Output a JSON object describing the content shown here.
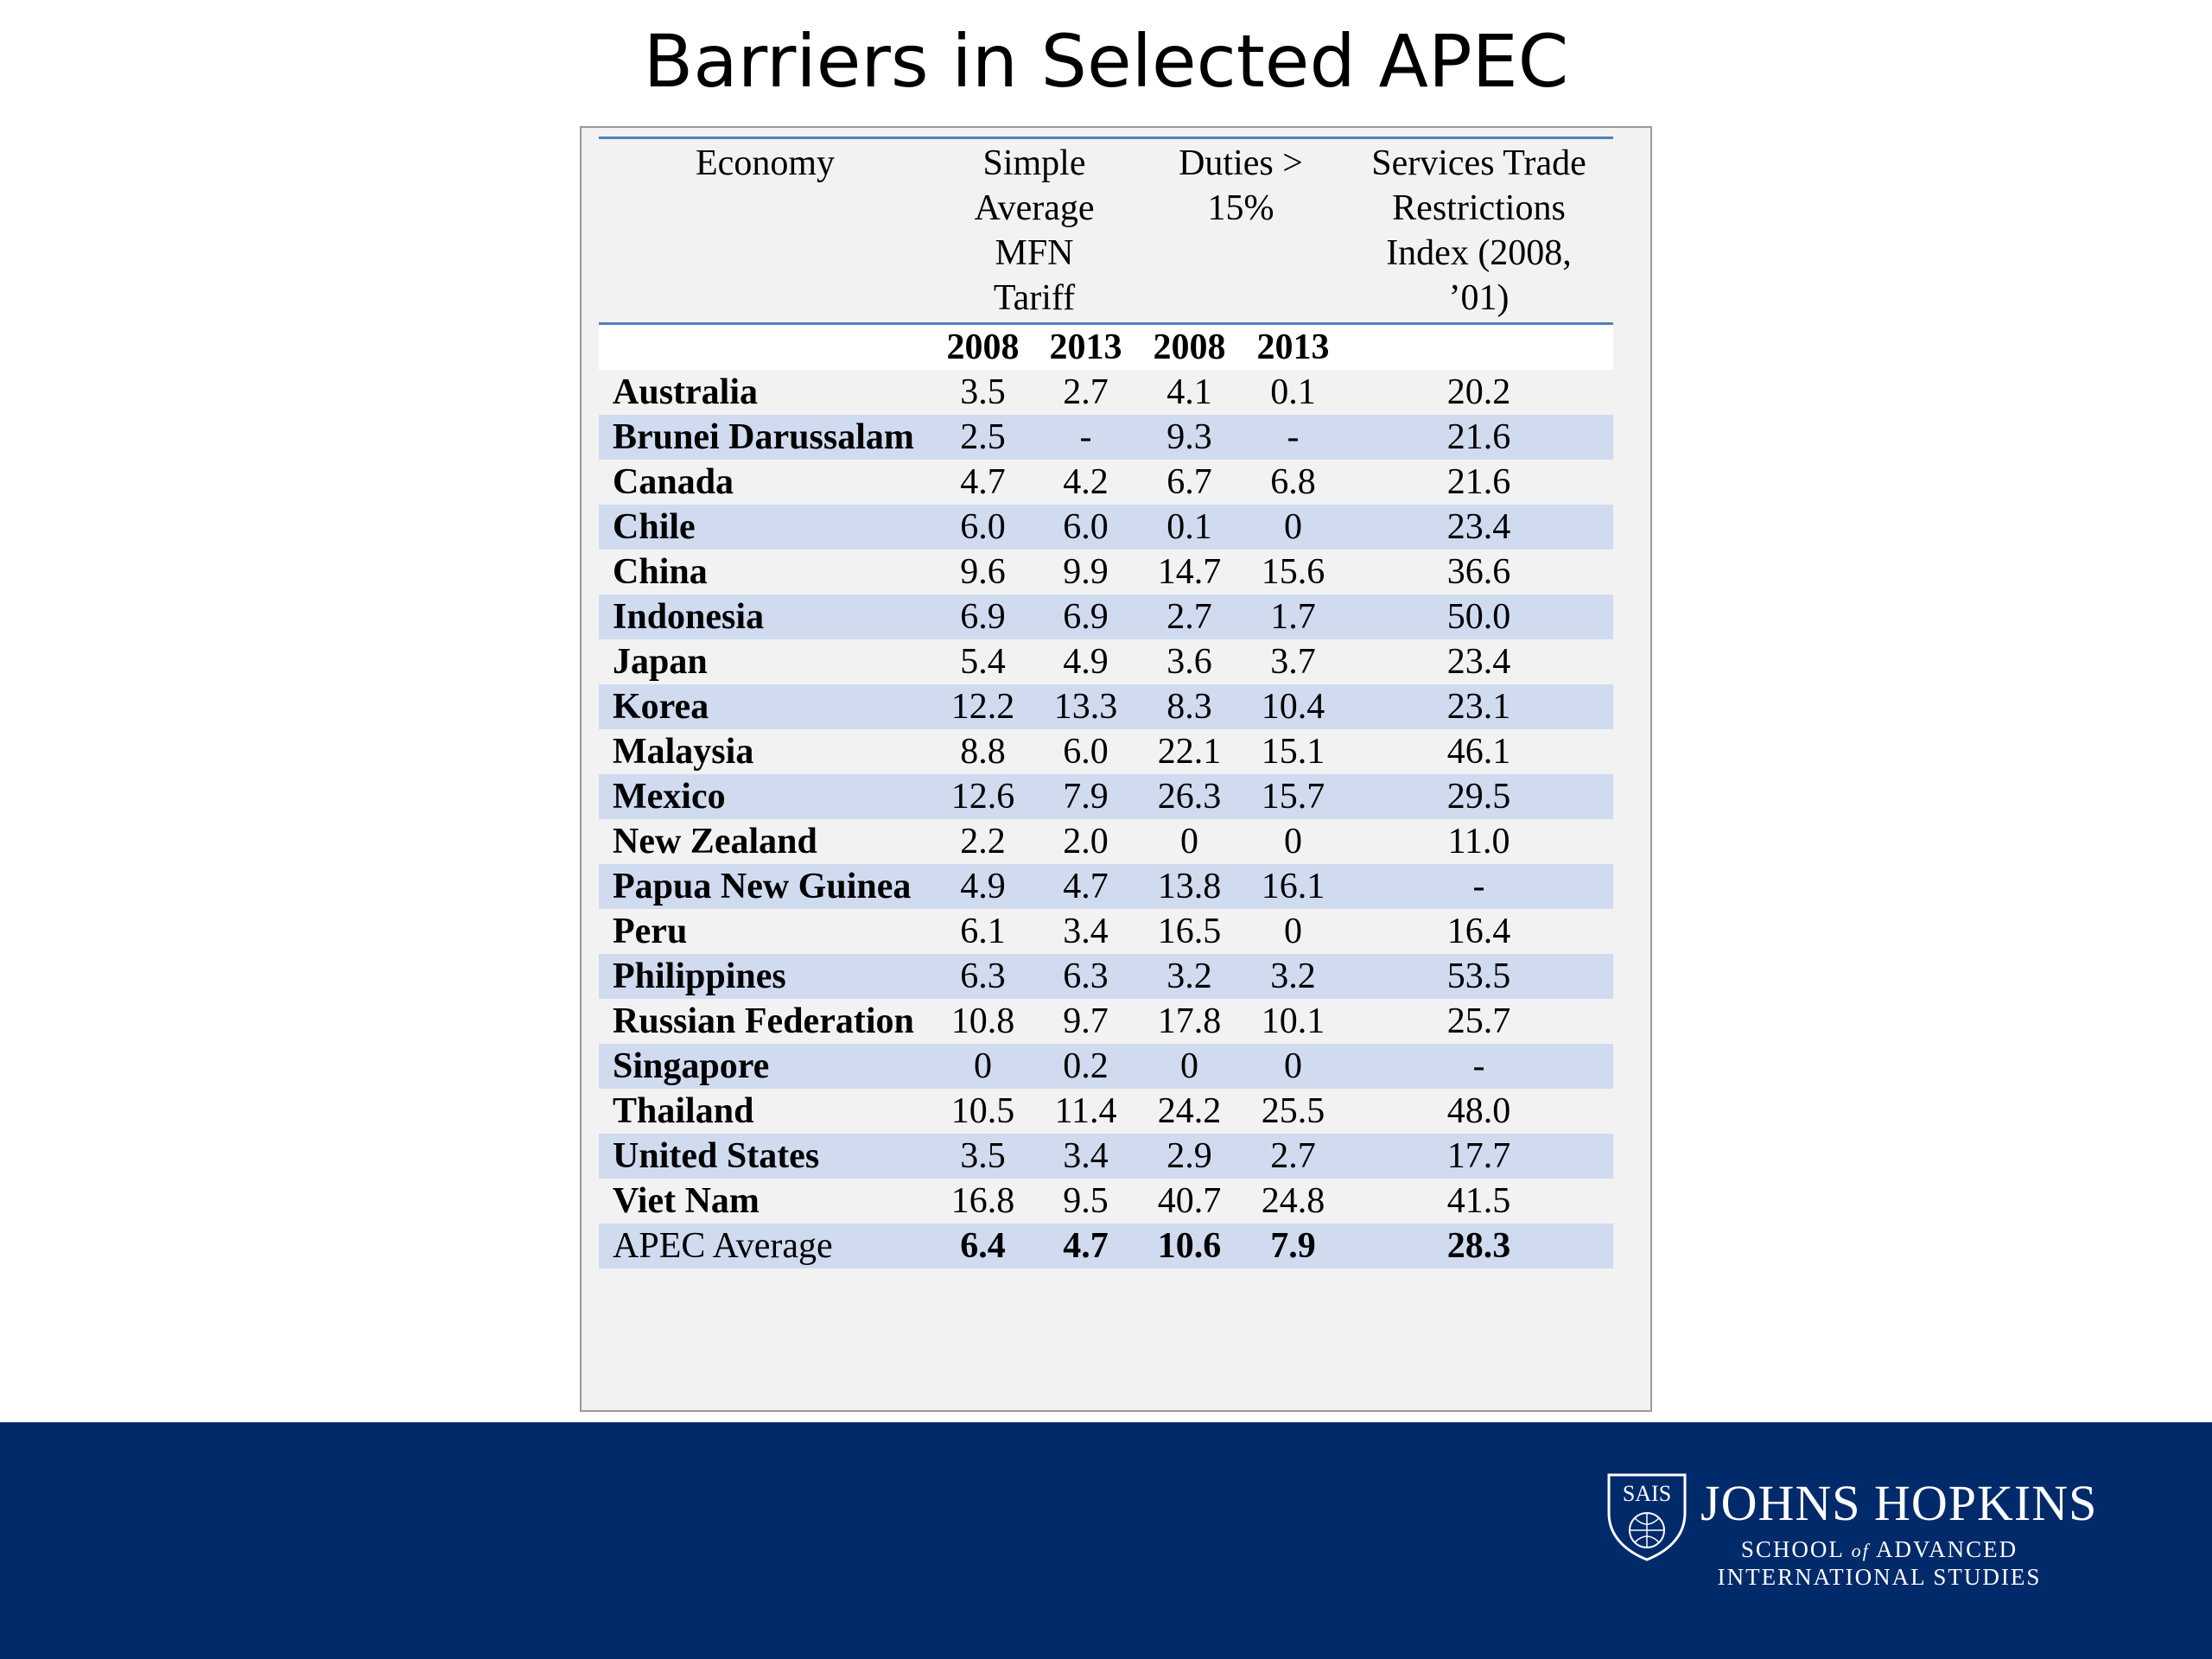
{
  "title": "Barriers in Selected APEC",
  "table": {
    "header": [
      {
        "lines": [
          "Economy"
        ]
      },
      {
        "lines": [
          "Simple",
          "Average",
          "MFN",
          "Tariff"
        ]
      },
      {
        "lines": [
          "Duties >",
          "15%"
        ]
      },
      {
        "lines": [
          "Services Trade",
          "Restrictions",
          "Index (2008,",
          "’01)"
        ]
      }
    ],
    "years": [
      "2008",
      "2013",
      "2008",
      "2013"
    ],
    "rows": [
      [
        "Australia",
        "3.5",
        "2.7",
        "4.1",
        "0.1",
        "20.2"
      ],
      [
        "Brunei Darussalam",
        "2.5",
        "-",
        "9.3",
        "-",
        "21.6"
      ],
      [
        "Canada",
        "4.7",
        "4.2",
        "6.7",
        "6.8",
        "21.6"
      ],
      [
        "Chile",
        "6.0",
        "6.0",
        "0.1",
        "0",
        "23.4"
      ],
      [
        "China",
        "9.6",
        "9.9",
        "14.7",
        "15.6",
        "36.6"
      ],
      [
        "Indonesia",
        "6.9",
        "6.9",
        "2.7",
        "1.7",
        "50.0"
      ],
      [
        "Japan",
        "5.4",
        "4.9",
        "3.6",
        "3.7",
        "23.4"
      ],
      [
        "Korea",
        "12.2",
        "13.3",
        "8.3",
        "10.4",
        "23.1"
      ],
      [
        "Malaysia",
        "8.8",
        "6.0",
        "22.1",
        "15.1",
        "46.1"
      ],
      [
        "Mexico",
        "12.6",
        "7.9",
        "26.3",
        "15.7",
        "29.5"
      ],
      [
        "New Zealand",
        "2.2",
        "2.0",
        "0",
        "0",
        "11.0"
      ],
      [
        "Papua New Guinea",
        "4.9",
        "4.7",
        "13.8",
        "16.1",
        "-"
      ],
      [
        "Peru",
        "6.1",
        "3.4",
        "16.5",
        "0",
        "16.4"
      ],
      [
        "Philippines",
        "6.3",
        "6.3",
        "3.2",
        "3.2",
        "53.5"
      ],
      [
        "Russian Federation",
        "10.8",
        "9.7",
        "17.8",
        "10.1",
        "25.7"
      ],
      [
        "Singapore",
        "0",
        "0.2",
        "0",
        "0",
        "-"
      ],
      [
        "Thailand",
        "10.5",
        "11.4",
        "24.2",
        "25.5",
        "48.0"
      ],
      [
        "United States",
        "3.5",
        "3.4",
        "2.9",
        "2.7",
        "17.7"
      ],
      [
        "Viet Nam",
        "16.8",
        "9.5",
        "40.7",
        "24.8",
        "41.5"
      ]
    ],
    "total": [
      "APEC Average",
      "6.4",
      "4.7",
      "10.6",
      "7.9",
      "28.3"
    ]
  },
  "footer": {
    "shield": "SAIS",
    "name": "JOHNS HOPKINS",
    "line1a": "SCHOOL",
    "line1b": "of",
    "line1c": "ADVANCED",
    "line2": "INTERNATIONAL STUDIES"
  }
}
